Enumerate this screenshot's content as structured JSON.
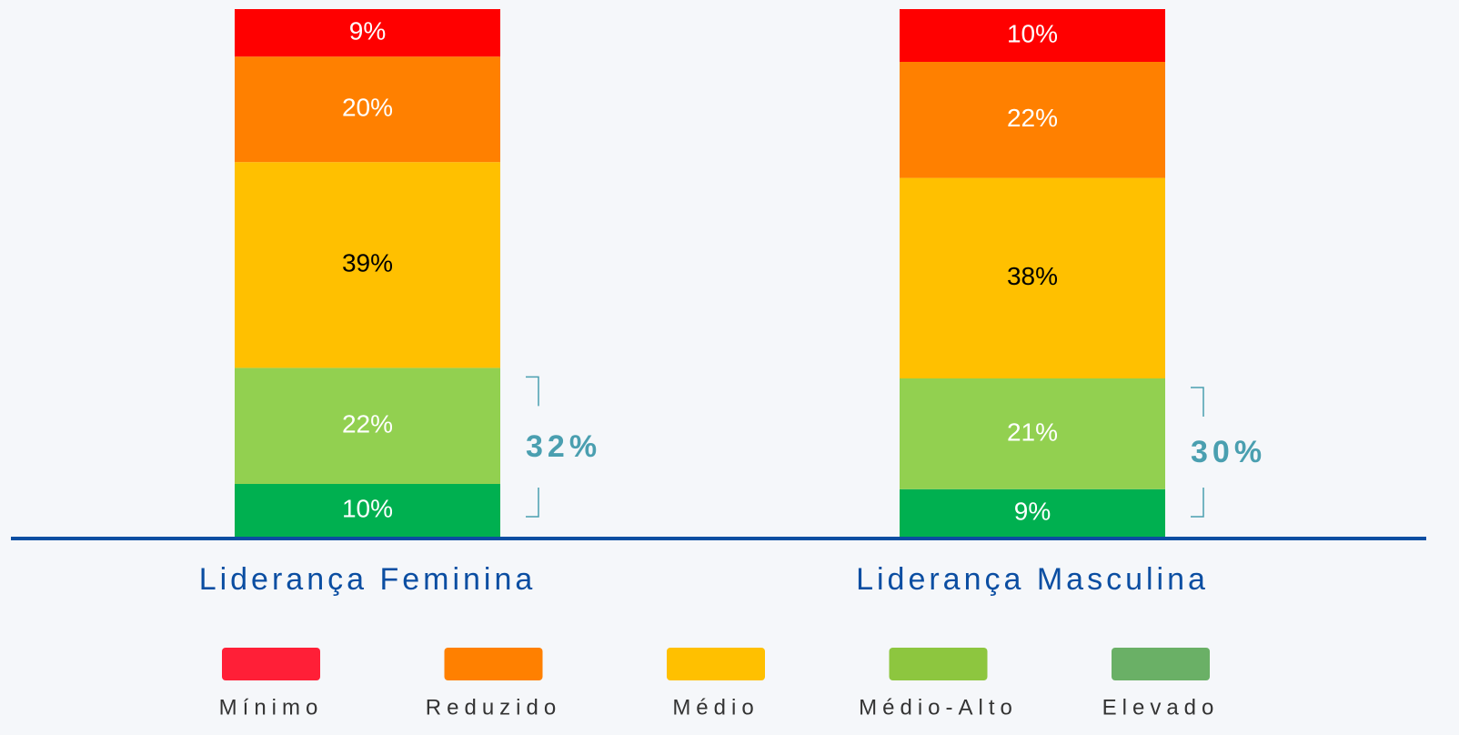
{
  "chart_data": {
    "type": "stacked_bar",
    "categories": [
      "Liderança Feminina",
      "Liderança Masculina"
    ],
    "series": [
      {
        "name": "Mínimo",
        "color": "#ff0000",
        "legend_color": "#ff1f37",
        "label_color": "#ffffff",
        "values": [
          9,
          10
        ],
        "value_labels": [
          "9%",
          "10%"
        ]
      },
      {
        "name": "Reduzido",
        "color": "#ff8000",
        "legend_color": "#ff8000",
        "label_color": "#ffffff",
        "values": [
          20,
          22
        ],
        "value_labels": [
          "20%",
          "22%"
        ]
      },
      {
        "name": "Médio",
        "color": "#ffc000",
        "legend_color": "#ffc000",
        "label_color": "#000000",
        "values": [
          39,
          38
        ],
        "value_labels": [
          "39%",
          "38%"
        ]
      },
      {
        "name": "Médio-Alto",
        "color": "#92d050",
        "legend_color": "#8dc63f",
        "label_color": "#ffffff",
        "values": [
          22,
          21
        ],
        "value_labels": [
          "22%",
          "21%"
        ]
      },
      {
        "name": "Elevado",
        "color": "#00b050",
        "legend_color": "#6ab066",
        "label_color": "#ffffff",
        "values": [
          10,
          9
        ],
        "value_labels": [
          "10%",
          "9%"
        ]
      }
    ],
    "annotations": [
      "32%",
      "30%"
    ]
  }
}
